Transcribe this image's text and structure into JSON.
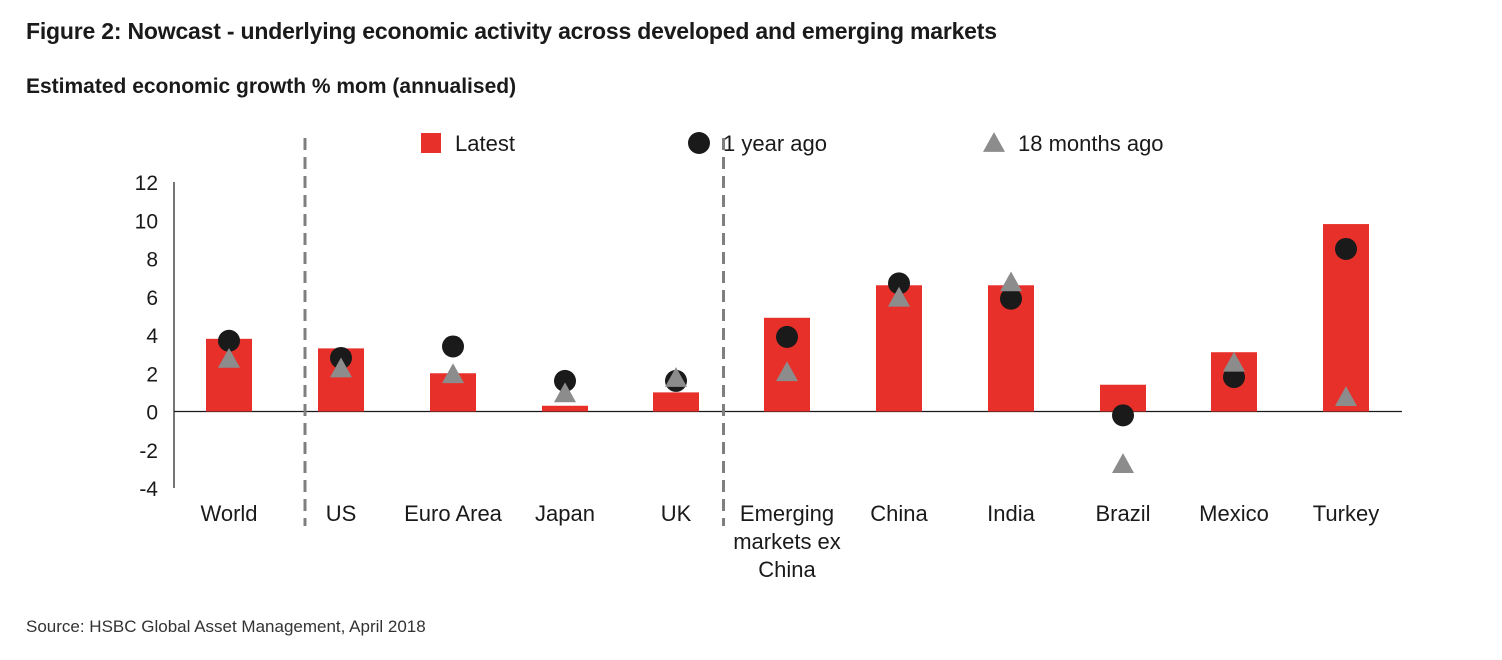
{
  "title": "Figure 2: Nowcast - underlying economic activity across developed and emerging markets",
  "source": "Source: HSBC Global Asset Management, April 2018",
  "colors": {
    "latest": "#e8302a",
    "one_year_ago": "#1a1a1a",
    "eighteen_months_ago": "#8c8c8c",
    "separator": "#7f7f7f"
  },
  "chart_data": {
    "type": "bar",
    "title": "Figure 2: Nowcast - underlying economic activity across developed and emerging markets",
    "ylabel": "Estimated economic growth % mom (annualised)",
    "xlabel": "",
    "ylim": [
      -4,
      12
    ],
    "yticks": [
      12,
      10,
      8,
      6,
      4,
      2,
      0,
      -2,
      -4
    ],
    "grid": false,
    "legend_position": "top",
    "categories": [
      "World",
      "US",
      "Euro Area",
      "Japan",
      "UK",
      "Emerging markets ex China",
      "China",
      "India",
      "Brazil",
      "Mexico",
      "Turkey"
    ],
    "category_label_lines": [
      [
        "World"
      ],
      [
        "US"
      ],
      [
        "Euro Area"
      ],
      [
        "Japan"
      ],
      [
        "UK"
      ],
      [
        "Emerging",
        "markets ex",
        "China"
      ],
      [
        "China"
      ],
      [
        "India"
      ],
      [
        "Brazil"
      ],
      [
        "Mexico"
      ],
      [
        "Turkey"
      ]
    ],
    "separators_after": [
      "World",
      "UK"
    ],
    "series": [
      {
        "name": "Latest",
        "marker": "bar",
        "values": [
          3.8,
          3.3,
          2.0,
          0.3,
          1.0,
          4.9,
          6.6,
          6.6,
          1.4,
          3.1,
          9.8
        ]
      },
      {
        "name": "1 year ago",
        "marker": "circle",
        "values": [
          3.7,
          2.8,
          3.4,
          1.6,
          1.6,
          3.9,
          6.7,
          5.9,
          -0.2,
          1.8,
          8.5
        ]
      },
      {
        "name": "18 months ago",
        "marker": "triangle",
        "values": [
          2.7,
          2.2,
          1.9,
          0.9,
          1.7,
          2.0,
          5.9,
          6.7,
          -2.8,
          2.5,
          0.7
        ]
      }
    ]
  }
}
